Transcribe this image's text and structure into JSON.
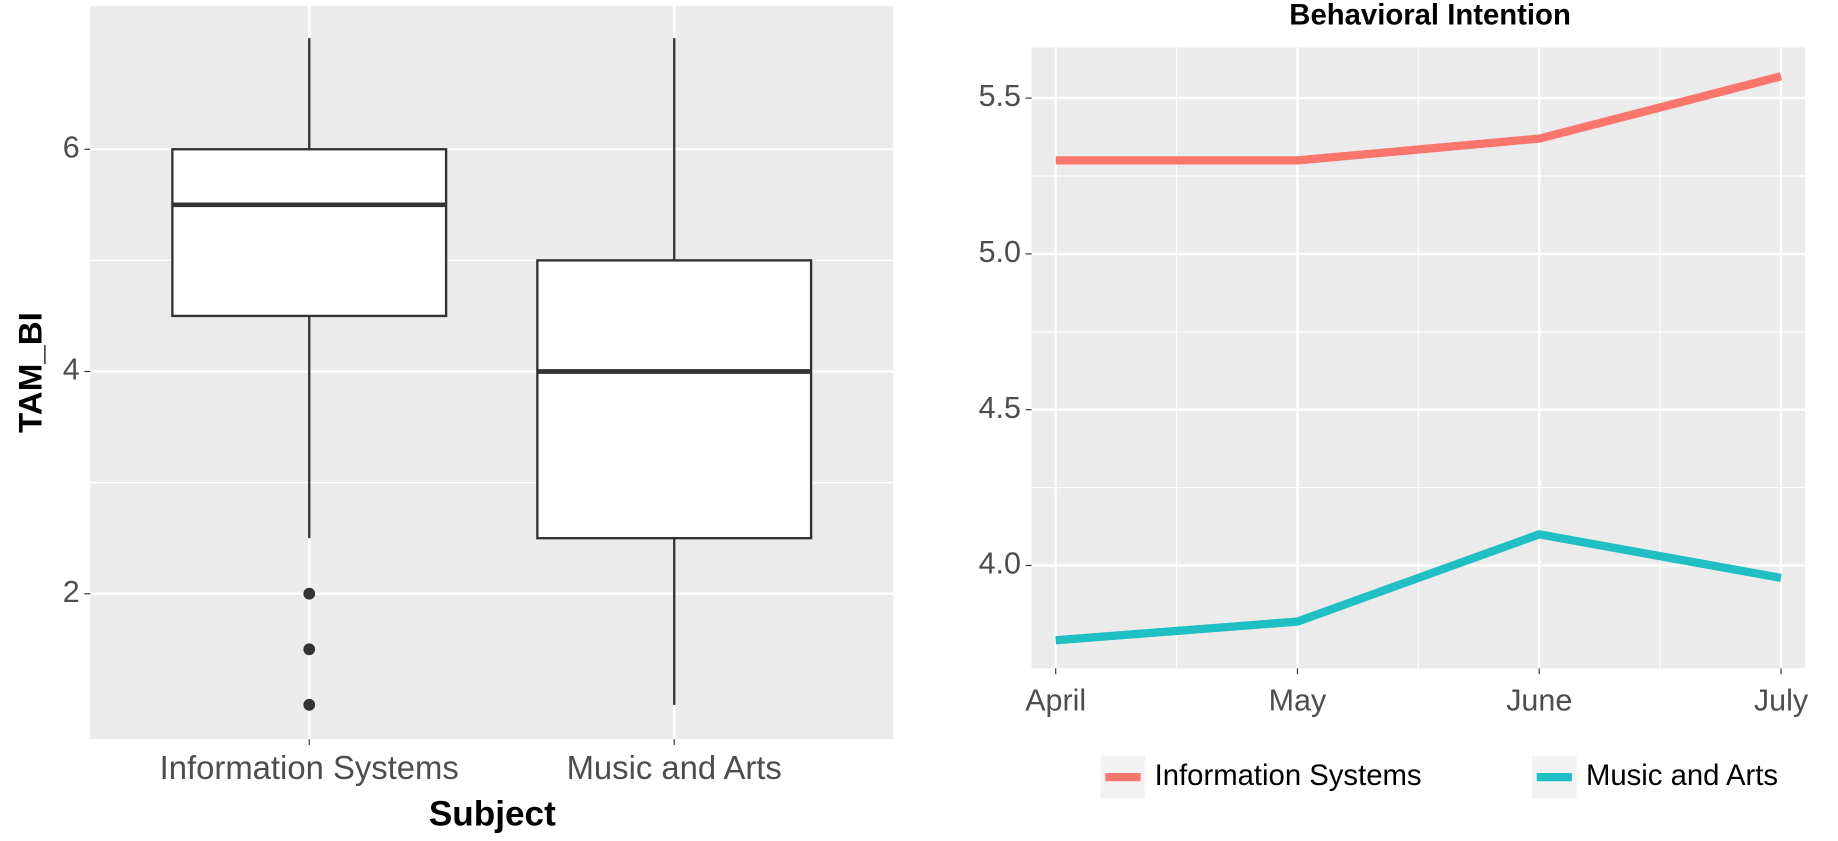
{
  "chart_data": [
    {
      "type": "box",
      "x_label": "Subject",
      "y_label": "TAM_BI",
      "categories": [
        "Information Systems",
        "Music and Arts"
      ],
      "boxes": [
        {
          "low": 2.5,
          "q1": 4.5,
          "median": 5.5,
          "q3": 6,
          "high": 7,
          "outliers": [
            2,
            1.5,
            1
          ]
        },
        {
          "low": 1,
          "q1": 2.5,
          "median": 4,
          "q3": 5,
          "high": 7,
          "outliers": []
        }
      ],
      "color": "#ffffff",
      "ylim": [
        0.69,
        7.29
      ],
      "yticks": [
        2,
        4,
        6
      ],
      "grid": true
    },
    {
      "type": "line",
      "title": "Behavioral Intention",
      "categories": [
        "April",
        "May",
        "June",
        "July"
      ],
      "series": [
        {
          "name": "Information Systems",
          "color": "#f8766d",
          "values": [
            5.3,
            5.3,
            5.37,
            5.57
          ]
        },
        {
          "name": "Music and Arts",
          "color": "#1fbfc4",
          "values": [
            3.76,
            3.82,
            4.1,
            3.96
          ]
        }
      ],
      "ylim": [
        3.67,
        5.663
      ],
      "yticks": [
        {
          "value": 4.0,
          "label": "4.0"
        },
        4.5,
        {
          "value": 5.0,
          "label": "5.0"
        },
        5.5
      ],
      "grid": true,
      "legend": "bottom"
    }
  ]
}
